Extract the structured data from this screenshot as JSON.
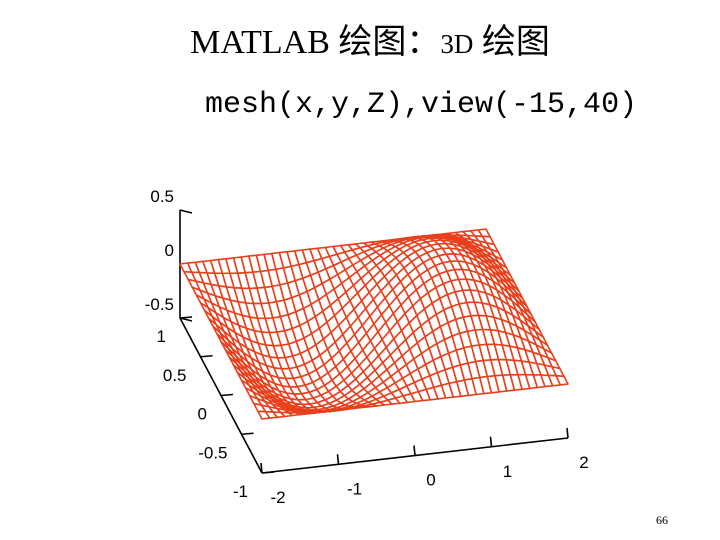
{
  "slide": {
    "title_latin": "MATLAB",
    "title_cn1": "绘图：",
    "title_3d": "3D",
    "title_cn2": "绘图",
    "page_number": "66"
  },
  "chart_data": {
    "type": "mesh",
    "title": "mesh(x,y,Z),view(-15,40)",
    "view": {
      "azimuth": -15,
      "elevation": 40
    },
    "mesh_color": "#e8401c",
    "x": {
      "min": -2,
      "max": 2,
      "ticks": [
        -2,
        -1,
        0,
        1,
        2
      ],
      "tick_labels": [
        "-2",
        "-1",
        "0",
        "1",
        "2"
      ]
    },
    "y": {
      "min": -1,
      "max": 1,
      "ticks": [
        -1,
        -0.5,
        0,
        0.5,
        1
      ],
      "tick_labels": [
        "-1",
        "-0.5",
        "0",
        "0.5",
        "1"
      ]
    },
    "z": {
      "min": -0.5,
      "max": 0.5,
      "ticks": [
        -0.5,
        0,
        0.5
      ],
      "tick_labels": [
        "-0.5",
        "0",
        "0.5"
      ]
    },
    "grid_points": {
      "nx": 40,
      "ny": 20
    },
    "surface_formula": "Z = 0.5*sin(pi*x/2)*cos(pi*y/2)"
  }
}
